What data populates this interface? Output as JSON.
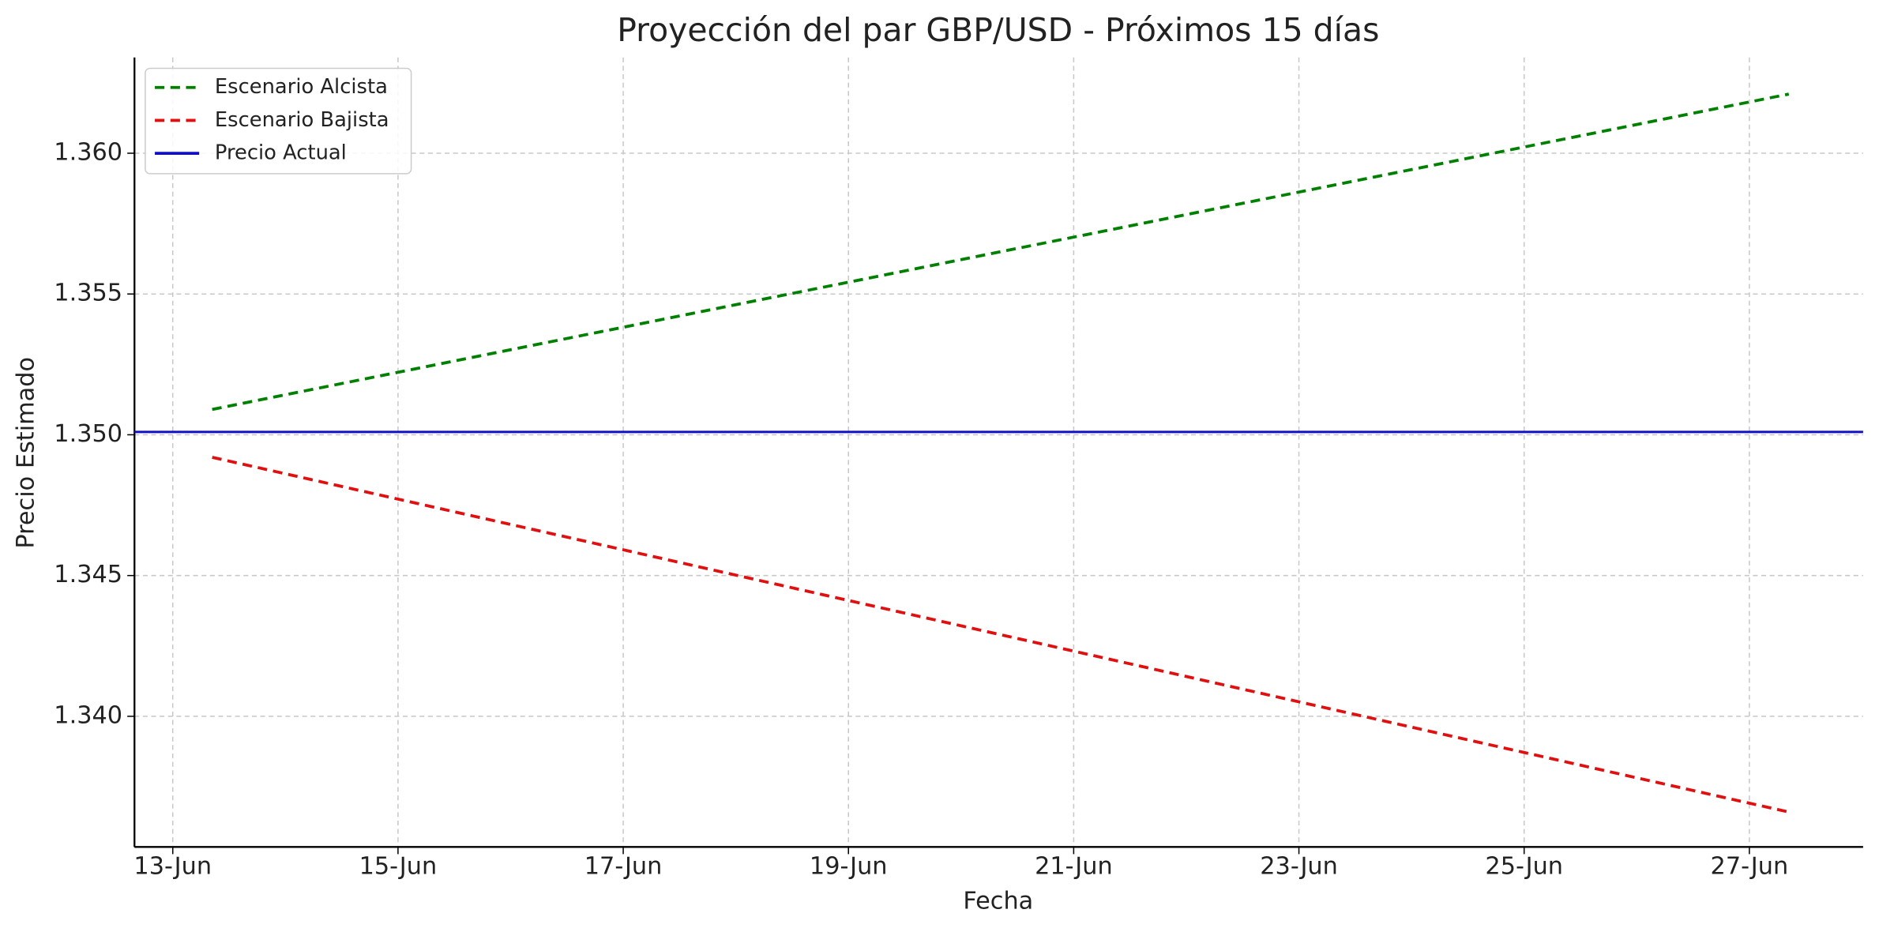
{
  "chart_data": {
    "type": "line",
    "title": "Proyección del par GBP/USD - Próximos 15 días",
    "x_label": "Fecha",
    "y_label": "Precio Estimado",
    "x": [
      13.35,
      14.35,
      15.35,
      16.35,
      17.35,
      18.35,
      19.35,
      20.35,
      21.35,
      22.35,
      23.35,
      24.35,
      25.35,
      26.35,
      27.35
    ],
    "series": [
      {
        "name": "Escenario Alcista",
        "color": "#008000",
        "dash": true,
        "values": [
          1.3509,
          1.3517,
          1.3525,
          1.3533,
          1.3541,
          1.3549,
          1.3557,
          1.3565,
          1.3573,
          1.3581,
          1.3589,
          1.3597,
          1.3605,
          1.3613,
          1.3621
        ]
      },
      {
        "name": "Escenario Bajista",
        "color": "#e01010",
        "dash": true,
        "values": [
          1.3492,
          1.3483,
          1.3474,
          1.3465,
          1.3456,
          1.3447,
          1.3438,
          1.3429,
          1.342,
          1.3411,
          1.3402,
          1.3393,
          1.3384,
          1.3375,
          1.3366
        ]
      },
      {
        "name": "Precio Actual",
        "color": "#1010c0",
        "dash": false,
        "hline": 1.3501
      }
    ],
    "xlim": [
      12.66,
      28.01
    ],
    "ylim": [
      1.33536,
      1.3634
    ],
    "xticks": [
      {
        "value": 13,
        "label": "13-Jun"
      },
      {
        "value": 15,
        "label": "15-Jun"
      },
      {
        "value": 17,
        "label": "17-Jun"
      },
      {
        "value": 19,
        "label": "19-Jun"
      },
      {
        "value": 21,
        "label": "21-Jun"
      },
      {
        "value": 23,
        "label": "23-Jun"
      },
      {
        "value": 25,
        "label": "25-Jun"
      },
      {
        "value": 27,
        "label": "27-Jun"
      }
    ],
    "yticks": [
      {
        "value": 1.34,
        "label": "1.340"
      },
      1.345,
      {
        "value": 1.35,
        "label": "1.350"
      },
      1.355,
      {
        "value": 1.36,
        "label": "1.360"
      }
    ],
    "grid": true,
    "legend": "upper left"
  }
}
